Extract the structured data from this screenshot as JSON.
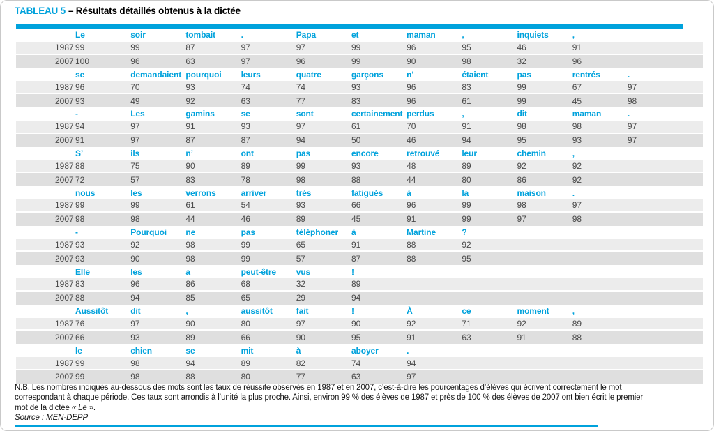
{
  "title": {
    "label": "TABLEAU 5",
    "rest": "– Résultats détaillés obtenus à la dictée"
  },
  "table": {
    "year_labels": [
      "1987",
      "2007"
    ],
    "max_columns": 11,
    "blocks": [
      {
        "words": [
          "Le",
          "soir",
          "tombait",
          ".",
          "Papa",
          "et",
          "maman",
          ",",
          "inquiets",
          ","
        ],
        "values_1987": [
          99,
          99,
          87,
          97,
          97,
          99,
          96,
          95,
          46,
          91
        ],
        "values_2007": [
          100,
          96,
          63,
          97,
          96,
          99,
          90,
          98,
          32,
          96
        ]
      },
      {
        "words": [
          "se",
          "demandaient",
          "pourquoi",
          "leurs",
          "quatre",
          "garçons",
          "n’",
          "étaient",
          "pas",
          "rentrés",
          "."
        ],
        "values_1987": [
          96,
          70,
          93,
          74,
          74,
          93,
          96,
          83,
          99,
          67,
          97
        ],
        "values_2007": [
          93,
          49,
          92,
          63,
          77,
          83,
          96,
          61,
          99,
          45,
          98
        ]
      },
      {
        "words": [
          "-",
          "Les",
          "gamins",
          "se",
          "sont",
          "certainement",
          "perdus",
          ",",
          "dit",
          "maman",
          "."
        ],
        "values_1987": [
          94,
          97,
          91,
          93,
          97,
          61,
          70,
          91,
          98,
          98,
          97
        ],
        "values_2007": [
          91,
          97,
          87,
          87,
          94,
          50,
          46,
          94,
          95,
          93,
          97
        ]
      },
      {
        "words": [
          "S’",
          "ils",
          "n’",
          "ont",
          "pas",
          "encore",
          "retrouvé",
          "leur",
          "chemin",
          ","
        ],
        "values_1987": [
          88,
          75,
          90,
          89,
          99,
          93,
          48,
          89,
          92,
          92
        ],
        "values_2007": [
          72,
          57,
          83,
          78,
          98,
          88,
          44,
          80,
          86,
          92
        ]
      },
      {
        "words": [
          "nous",
          "les",
          "verrons",
          "arriver",
          "très",
          "fatigués",
          "à",
          "la",
          "maison",
          "."
        ],
        "values_1987": [
          99,
          99,
          61,
          54,
          93,
          66,
          96,
          99,
          98,
          97
        ],
        "values_2007": [
          98,
          98,
          44,
          46,
          89,
          45,
          91,
          99,
          97,
          98
        ]
      },
      {
        "words": [
          "-",
          "Pourquoi",
          "ne",
          "pas",
          "téléphoner",
          "à",
          "Martine",
          "?"
        ],
        "values_1987": [
          93,
          92,
          98,
          99,
          65,
          91,
          88,
          92
        ],
        "values_2007": [
          93,
          90,
          98,
          99,
          57,
          87,
          88,
          95
        ]
      },
      {
        "words": [
          "Elle",
          "les",
          "a",
          "peut-être",
          "vus",
          "!"
        ],
        "values_1987": [
          83,
          96,
          86,
          68,
          32,
          89
        ],
        "values_2007": [
          88,
          94,
          85,
          65,
          29,
          94
        ]
      },
      {
        "words": [
          "Aussitôt",
          "dit",
          ",",
          "aussitôt",
          "fait",
          "!",
          "À",
          "ce",
          "moment",
          ","
        ],
        "values_1987": [
          76,
          97,
          90,
          80,
          97,
          90,
          92,
          71,
          92,
          89
        ],
        "values_2007": [
          66,
          93,
          89,
          66,
          90,
          95,
          91,
          63,
          91,
          88
        ]
      },
      {
        "words": [
          "le",
          "chien",
          "se",
          "mit",
          "à",
          "aboyer",
          "."
        ],
        "values_1987": [
          99,
          98,
          94,
          89,
          82,
          74,
          94
        ],
        "values_2007": [
          99,
          98,
          88,
          80,
          77,
          63,
          97
        ]
      }
    ]
  },
  "note": {
    "line1": "N.B. Les nombres indiqués au-dessous des mots sont les taux de réussite observés en 1987 et en 2007, c’est-à-dire les pourcentages d’élèves qui écrivent correctement le mot",
    "line2": "correspondant à chaque période. Ces taux sont arrondis à l’unité la plus proche. Ainsi, environ 99 % des élèves de 1987 et près de 100 % des élèves de 2007 ont bien écrit le premier",
    "line3_pre": "mot de la dictée ",
    "line3_quote": "« Le »",
    "line3_end": "."
  },
  "source": "Source : MEN-DEPP",
  "colors": {
    "accent": "#00a2dc",
    "row_1987": "#ececec",
    "row_2007": "#dfdfdf",
    "value_text": "#4a4a4a"
  }
}
